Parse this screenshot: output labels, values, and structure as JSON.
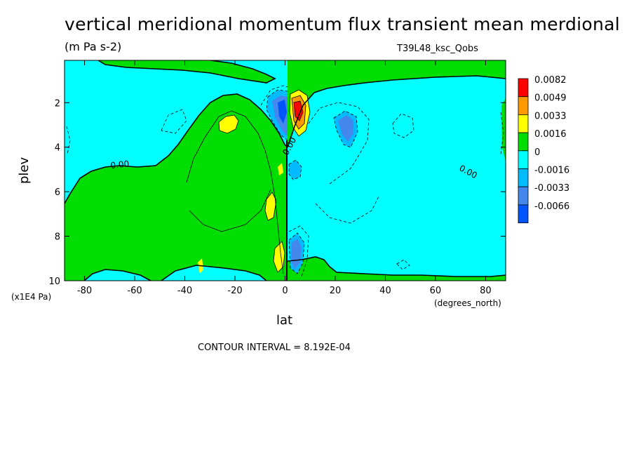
{
  "chart_data": {
    "type": "contour",
    "title": "vertical meridional momentum flux transient mean merdional",
    "units": "(m Pa s-2)",
    "model_label": "T39L48_ksc_Qobs",
    "xlabel": "lat",
    "x_units": "(degrees_north)",
    "ylabel": "plev",
    "y_units": "(x1E4 Pa)",
    "x_ticks": [
      "-80",
      "-60",
      "-40",
      "-20",
      "0",
      "20",
      "40",
      "60",
      "80"
    ],
    "x_tick_values": [
      -80,
      -60,
      -40,
      -20,
      0,
      20,
      40,
      60,
      80
    ],
    "y_ticks": [
      "2",
      "4",
      "6",
      "8",
      "10"
    ],
    "y_tick_values": [
      2,
      4,
      6,
      8,
      10
    ],
    "xlim": [
      -88,
      88
    ],
    "ylim": [
      0.1,
      10
    ],
    "y_inverted": true,
    "contour_interval": "CONTOUR INTERVAL = 8.192E-04",
    "contour_labels": [
      "0.00",
      "0.00",
      "0.00"
    ],
    "legend": {
      "position": "right",
      "labels": [
        "0.0082",
        "0.0049",
        "0.0033",
        "0.0016",
        "0",
        "-0.0016",
        "-0.0033",
        "-0.0066"
      ],
      "colors": [
        "#ff0000",
        "#ff9900",
        "#ffff00",
        "#00dd00",
        "#00ffff",
        "#00bbff",
        "#4488ee",
        "#0055ff"
      ]
    },
    "fill_colors": {
      "positive_small": "#00dd00",
      "negative_small": "#00ffff",
      "positive_mid": "#ffff00",
      "positive_high": "#ff9900",
      "positive_max": "#ff0000",
      "negative_mid": "#00bbff",
      "negative_high": "#4488ee",
      "negative_max": "#0055ff"
    },
    "features": [
      {
        "lat": 4,
        "plev": 2.4,
        "sign": "positive",
        "level": "0.0082"
      },
      {
        "lat": -2,
        "plev": 2.4,
        "sign": "negative",
        "level": "-0.0066"
      },
      {
        "lat": 25,
        "plev": 3.2,
        "sign": "negative",
        "level": "-0.0033"
      },
      {
        "lat": 5,
        "plev": 9.0,
        "sign": "negative",
        "level": "-0.0033"
      },
      {
        "lat": -23,
        "plev": 3.0,
        "sign": "positive",
        "level": "0.0016"
      }
    ]
  }
}
